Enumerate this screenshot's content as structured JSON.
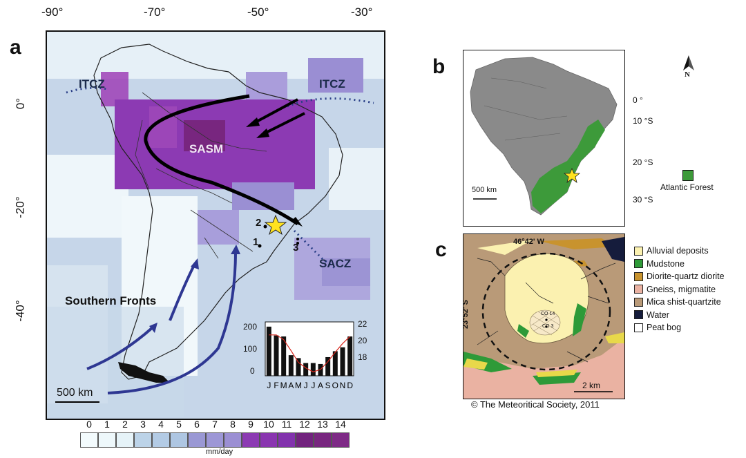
{
  "panel_a": {
    "letter": "a",
    "lon_ticks": [
      "-90°",
      "-70°",
      "-50°",
      "-30°"
    ],
    "lat_ticks": [
      "0°",
      "-20°",
      "-40°"
    ],
    "labels": {
      "itcz_west": "ITCZ",
      "itcz_east": "ITCZ",
      "sasm": "SASM",
      "sacz": "SACZ",
      "southern_fronts": "Southern Fronts",
      "site_1": "1",
      "site_2": "2",
      "site_3": "3"
    },
    "scale_bar": "500 km",
    "colorbar": {
      "ticks": [
        "0",
        "1",
        "2",
        "3",
        "4",
        "5",
        "6",
        "7",
        "8",
        "9",
        "10",
        "11",
        "12",
        "13",
        "14"
      ],
      "colors": [
        "#f3fbfd",
        "#eef8fb",
        "#e6f3f8",
        "#bcd3e8",
        "#b3cbe5",
        "#aec6e2",
        "#9a98d4",
        "#9d97d6",
        "#9b8fd3",
        "#8c3ab3",
        "#8a35b0",
        "#8232ad",
        "#72237e",
        "#78267f",
        "#7e2a86"
      ],
      "unit": "mm/day"
    },
    "inset_chart": {
      "months": [
        "J",
        "F",
        "M",
        "A",
        "M",
        "J",
        "J",
        "A",
        "S",
        "O",
        "N",
        "D"
      ],
      "left_ticks": [
        "0",
        "100",
        "200"
      ],
      "right_ticks": [
        "18",
        "20",
        "22"
      ]
    }
  },
  "chart_data": {
    "type": "bar",
    "categories": [
      "J",
      "F",
      "M",
      "A",
      "M",
      "J",
      "J",
      "A",
      "S",
      "O",
      "N",
      "D"
    ],
    "series": [
      {
        "values": [
          250,
          205,
          200,
          105,
          90,
          65,
          65,
          60,
          95,
          125,
          145,
          200
        ]
      },
      {
        "values": [
          22.2,
          22.2,
          21.6,
          20.2,
          18.7,
          18.0,
          17.5,
          17.8,
          18.8,
          20.0,
          21.1,
          22.0
        ]
      }
    ],
    "ylim": [
      0,
      260
    ],
    "y2lim": [
      17,
      23.5
    ]
  },
  "panel_b": {
    "letter": "b",
    "lat_ticks": [
      "0 °",
      "10 °S",
      "20 °S",
      "30 °S"
    ],
    "scale_bar": "500 km",
    "north": "N",
    "legend_label": "Atlantic Forest",
    "forest_color": "#3d9a3a"
  },
  "panel_c": {
    "letter": "c",
    "lon_label": "46°42' W",
    "lat_label": "23°52' S",
    "cores": [
      "CO 14",
      "CO 3"
    ],
    "scale_bar": "2 km",
    "legend": [
      {
        "label": "Alluvial deposits",
        "color": "#fbf1b0"
      },
      {
        "label": "Mudstone",
        "color": "#2e9a38"
      },
      {
        "label": "Diorite-quartz diorite",
        "color": "#c8932e"
      },
      {
        "label": "Gneiss, migmatite",
        "color": "#eab2a2"
      },
      {
        "label": "Mica shist-quartzite",
        "color": "#b99a78"
      },
      {
        "label": "Water",
        "color": "#151c3c"
      },
      {
        "label": "Peat bog",
        "color": "#ffffff"
      }
    ]
  },
  "copyright": "© The Meteoritical Society, 2011"
}
